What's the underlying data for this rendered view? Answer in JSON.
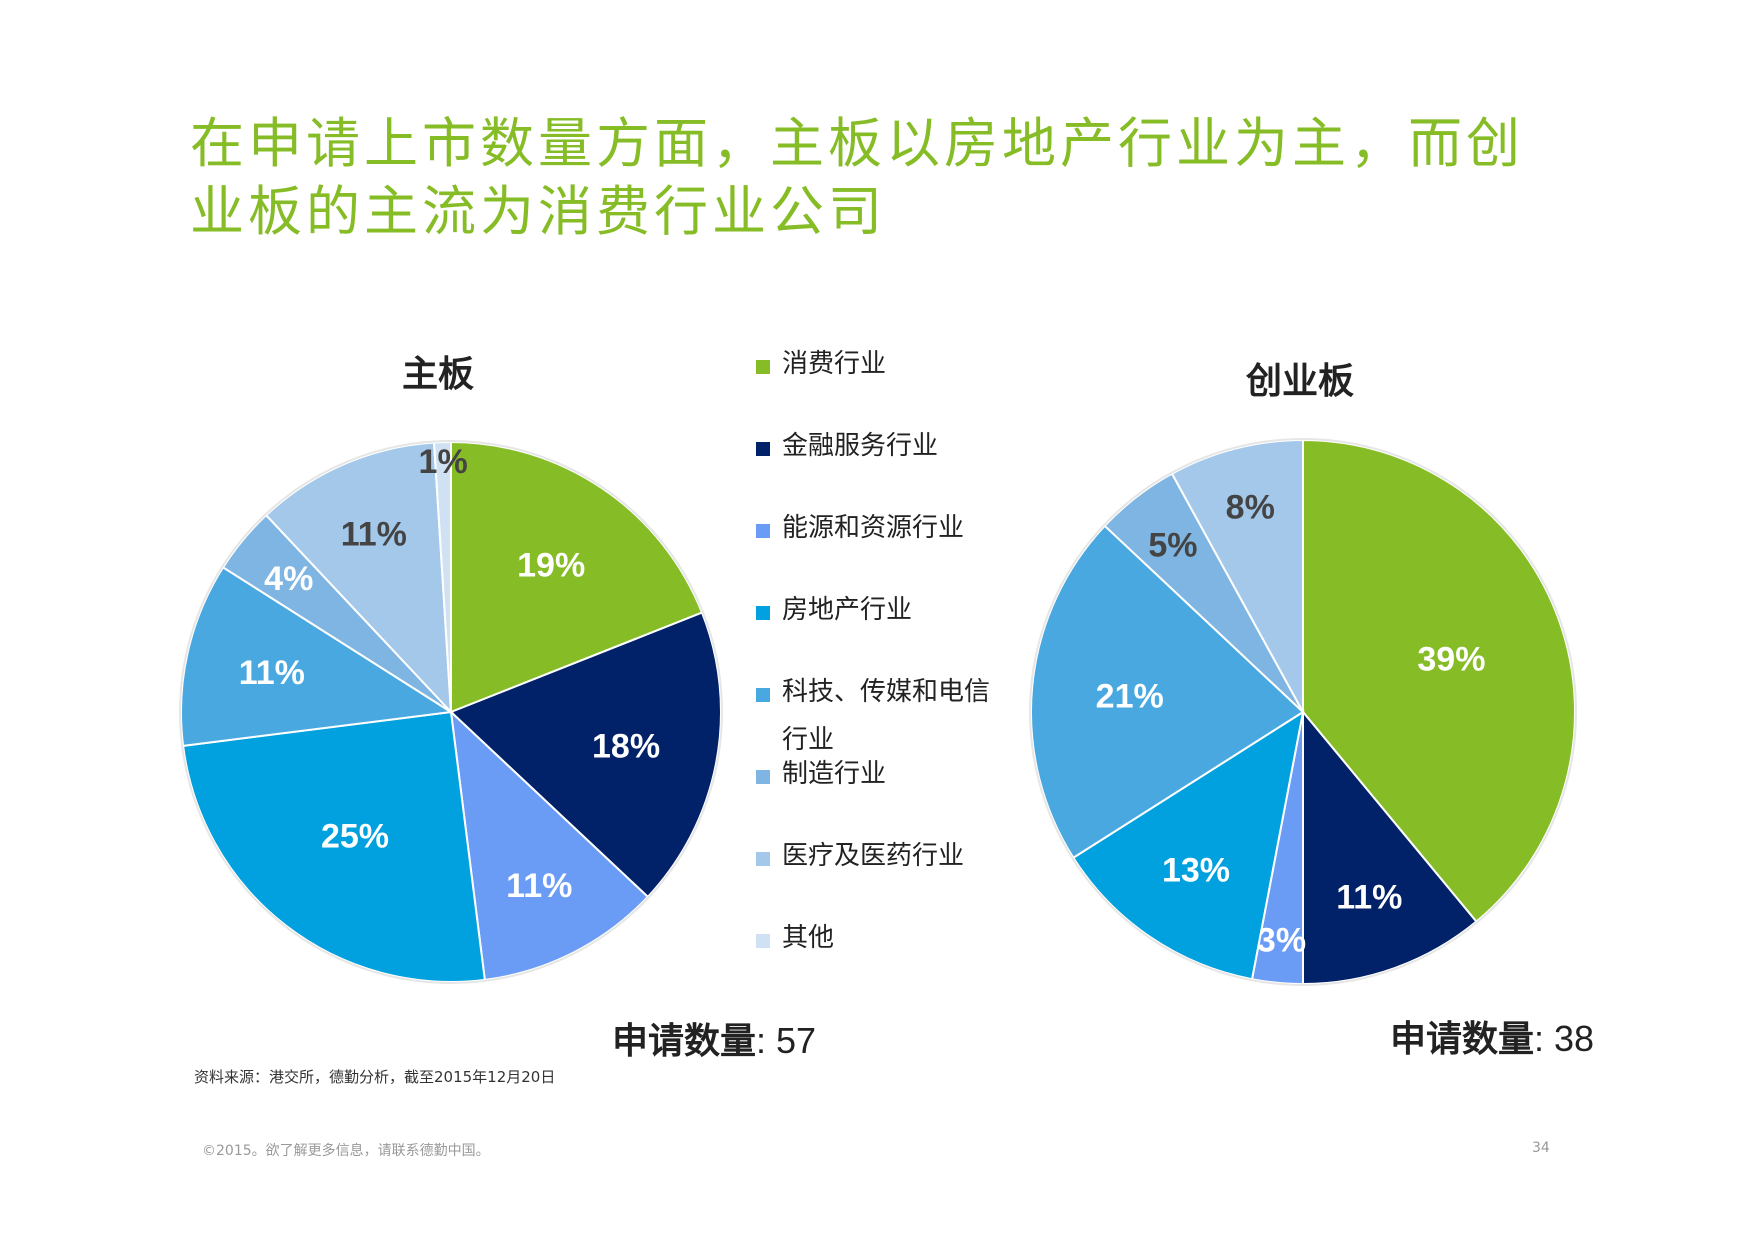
{
  "title": {
    "line1": "在申请上市数量方面，主板以房地产行业为主，而创",
    "line2": "业板的主流为消费行业公司"
  },
  "legend": [
    {
      "label": "消费行业",
      "color": "#86bc25"
    },
    {
      "label": "金融服务行业",
      "color": "#012169"
    },
    {
      "label": "能源和资源行业",
      "color": "#6b9cf5"
    },
    {
      "label": "房地产行业",
      "color": "#00a1de"
    },
    {
      "label": "科技、传媒和电信行业",
      "color": "#4aa8e0"
    },
    {
      "label": "制造行业",
      "color": "#7fb5e2"
    },
    {
      "label": "医疗及医药行业",
      "color": "#a3c8ea"
    },
    {
      "label": "其他",
      "color": "#cfe1f3"
    }
  ],
  "chart_data": [
    {
      "type": "pie",
      "title": "主板",
      "slices": [
        {
          "category": "消费行业",
          "value": 19,
          "label": "19%"
        },
        {
          "category": "金融服务行业",
          "value": 18,
          "label": "18%"
        },
        {
          "category": "能源和资源行业",
          "value": 11,
          "label": "11%"
        },
        {
          "category": "房地产行业",
          "value": 25,
          "label": "25%"
        },
        {
          "category": "科技、传媒和电信行业",
          "value": 11,
          "label": "11%"
        },
        {
          "category": "制造行业",
          "value": 4,
          "label": "4%"
        },
        {
          "category": "医疗及医药行业",
          "value": 11,
          "label": "11%"
        },
        {
          "category": "其他",
          "value": 1,
          "label": "1%"
        }
      ],
      "count_label": "申请数量",
      "count_value": ": 57"
    },
    {
      "type": "pie",
      "title": "创业板",
      "slices": [
        {
          "category": "消费行业",
          "value": 39,
          "label": "39%"
        },
        {
          "category": "金融服务行业",
          "value": 11,
          "label": "11%"
        },
        {
          "category": "能源和资源行业",
          "value": 3,
          "label": "3%"
        },
        {
          "category": "房地产行业",
          "value": 13,
          "label": "13%"
        },
        {
          "category": "科技、传媒和电信行业",
          "value": 21,
          "label": "21%"
        },
        {
          "category": "制造行业",
          "value": 5,
          "label": "5%"
        },
        {
          "category": "医疗及医药行业",
          "value": 8,
          "label": "8%"
        }
      ],
      "count_label": "申请数量",
      "count_value": ": 38"
    }
  ],
  "source": "资料来源：港交所，德勤分析，截至2015年12月20日",
  "footer": "©2015。欲了解更多信息，请联系德勤中国。",
  "page_number": "34"
}
